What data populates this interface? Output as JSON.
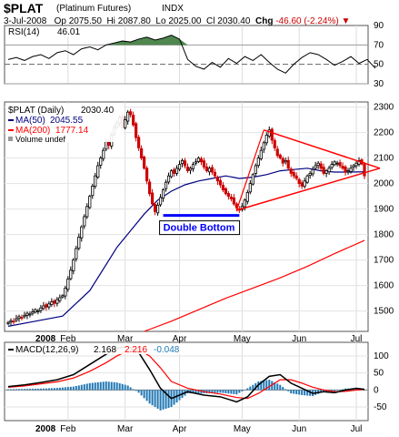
{
  "header": {
    "symbol": "$PLAT",
    "name": "(Platinum Futures)",
    "exchange": "INDX",
    "date": "3-Jul-2008",
    "open_label": "Op",
    "open": "2075.50",
    "high_label": "Hi",
    "high": "2087.80",
    "low_label": "Lo",
    "low": "2025.00",
    "close_label": "Cl",
    "close": "2030.40",
    "chg_label": "Chg",
    "chg": "-46.60 (-2.24%)"
  },
  "colors": {
    "up": "#000000",
    "down": "#cc0000",
    "ma50": "#000080",
    "ma200": "#ff0000",
    "rsi_fill": "#3c7a3c",
    "triangle": "#ff0000",
    "double_bottom": "#0000ff",
    "macd_hist": "#1f77b4",
    "signal": "#ff0000"
  },
  "chart_data": [
    {
      "type": "line",
      "panel": "rsi",
      "label": "RSI(14)",
      "value_label": "46.01",
      "ylim": [
        30,
        90
      ],
      "yticks": [
        30,
        50,
        70,
        90
      ],
      "tick_labels": [
        "90",
        "70",
        "50",
        "30"
      ],
      "reference_lines": [
        30,
        50,
        70
      ],
      "overbought_fill_above": 70,
      "x": [
        0,
        3,
        6,
        9,
        12,
        15,
        18,
        21,
        24,
        27,
        30,
        33,
        36,
        39,
        42,
        45,
        48,
        51,
        54,
        57,
        60,
        63,
        66,
        69,
        72,
        75,
        78,
        81,
        84,
        87,
        90,
        93,
        96,
        99,
        102,
        105,
        108,
        111,
        114,
        117,
        120,
        123,
        126,
        129,
        132,
        135
      ],
      "values": [
        55,
        57,
        54,
        58,
        60,
        56,
        62,
        64,
        60,
        66,
        68,
        65,
        70,
        72,
        74,
        73,
        76,
        78,
        75,
        77,
        80,
        76,
        55,
        48,
        45,
        52,
        47,
        56,
        51,
        58,
        54,
        60,
        52,
        45,
        41,
        50,
        57,
        62,
        60,
        55,
        49,
        53,
        58,
        51,
        55,
        46
      ]
    },
    {
      "type": "candlestick",
      "panel": "price",
      "label": "$PLAT (Daily)",
      "value_label": "2030.40",
      "ylim": [
        1420,
        2320
      ],
      "yticks": [
        1500,
        1600,
        1700,
        1800,
        1900,
        2000,
        2100,
        2200,
        2300
      ],
      "x_tick_labels": [
        "Feb",
        "Mar",
        "Apr",
        "May",
        "Jun",
        "Jul"
      ],
      "x_tick_positions": [
        22,
        43,
        63,
        86,
        107,
        128
      ],
      "year_label": "2008",
      "closes": [
        1455,
        1462,
        1458,
        1470,
        1478,
        1474,
        1483,
        1491,
        1488,
        1497,
        1505,
        1500,
        1512,
        1520,
        1515,
        1528,
        1536,
        1530,
        1545,
        1552,
        1560,
        1590,
        1625,
        1660,
        1700,
        1745,
        1790,
        1830,
        1870,
        1910,
        1950,
        1990,
        2030,
        2070,
        2100,
        2130,
        2165,
        2150,
        2190,
        2220,
        2240,
        2260,
        2220,
        2250,
        2280,
        2270,
        2230,
        2180,
        2140,
        2100,
        2060,
        2010,
        1960,
        1920,
        1890,
        1915,
        1945,
        1975,
        2005,
        2030,
        2050,
        2040,
        2060,
        2075,
        2090,
        2070,
        2050,
        2060,
        2075,
        2085,
        2100,
        2085,
        2065,
        2050,
        2060,
        2045,
        2030,
        2010,
        1995,
        1975,
        1960,
        1950,
        1940,
        1920,
        1905,
        1895,
        1910,
        1935,
        1965,
        2000,
        2035,
        2070,
        2100,
        2130,
        2160,
        2190,
        2210,
        2170,
        2140,
        2110,
        2100,
        2080,
        2090,
        2060,
        2040,
        2030,
        2020,
        2000,
        1990,
        2010,
        2030,
        2040,
        2055,
        2070,
        2080,
        2060,
        2040,
        2050,
        2060,
        2075,
        2085,
        2080,
        2070,
        2060,
        2045,
        2050,
        2060,
        2070,
        2080,
        2090,
        2077,
        2030
      ],
      "series": [
        {
          "name": "MA(50)",
          "value_label": "2045.55",
          "x": [
            0,
            10,
            20,
            30,
            40,
            50,
            55,
            60,
            65,
            70,
            75,
            80,
            85,
            90,
            95,
            100,
            105,
            110,
            115,
            120,
            125,
            131
          ],
          "values": [
            1440,
            1460,
            1480,
            1580,
            1750,
            1880,
            1935,
            1970,
            1995,
            2010,
            2020,
            2030,
            2020,
            2025,
            2035,
            2050,
            2055,
            2060,
            2050,
            2045,
            2045,
            2046
          ]
        },
        {
          "name": "MA(200)",
          "value_label": "1777.14",
          "x": [
            50,
            60,
            70,
            80,
            90,
            100,
            110,
            120,
            131
          ],
          "values": [
            1420,
            1460,
            1505,
            1550,
            1590,
            1630,
            1675,
            1725,
            1777
          ]
        }
      ],
      "extra_legend": "Volume undef",
      "annotation": "Double Bottom",
      "double_bottom_level": 1875,
      "double_bottom_range": [
        57,
        85
      ],
      "triangle": {
        "upper": {
          "x": [
            94,
            134
          ],
          "y": [
            2210,
            2060
          ]
        },
        "lower": {
          "x": [
            84,
            134
          ],
          "y": [
            1895,
            2060
          ]
        }
      }
    },
    {
      "type": "bar",
      "panel": "macd",
      "label": "MACD(12,26,9)",
      "macd_label": "2.168",
      "signal_label": "2.216",
      "hist_label": "-0.048",
      "ylim": [
        -90,
        140
      ],
      "yticks": [
        -50,
        0,
        50,
        100
      ],
      "year_label": "2008",
      "x_tick_labels": [
        "Feb",
        "Mar",
        "Apr",
        "May",
        "Jun",
        "Jul"
      ],
      "x_tick_positions": [
        22,
        43,
        63,
        86,
        107,
        128
      ],
      "x": [
        0,
        6,
        12,
        18,
        24,
        30,
        36,
        40,
        44,
        48,
        52,
        56,
        60,
        66,
        72,
        78,
        84,
        88,
        92,
        96,
        100,
        104,
        108,
        112,
        116,
        120,
        124,
        128,
        131
      ],
      "macd": [
        10,
        15,
        22,
        30,
        45,
        75,
        105,
        122,
        128,
        110,
        60,
        5,
        -25,
        -5,
        -15,
        -20,
        -35,
        -20,
        15,
        40,
        45,
        20,
        5,
        -10,
        -5,
        -8,
        0,
        5,
        2
      ],
      "signal": [
        8,
        12,
        18,
        24,
        35,
        55,
        80,
        100,
        115,
        118,
        100,
        65,
        25,
        5,
        -5,
        -12,
        -22,
        -25,
        -10,
        10,
        30,
        30,
        20,
        8,
        0,
        -5,
        -4,
        0,
        2
      ],
      "histogram": [
        2,
        3,
        4,
        6,
        10,
        20,
        25,
        22,
        13,
        -8,
        -40,
        -60,
        -50,
        -10,
        -10,
        -8,
        -13,
        5,
        25,
        30,
        15,
        -10,
        -15,
        -18,
        -5,
        -3,
        4,
        5,
        0
      ]
    }
  ]
}
